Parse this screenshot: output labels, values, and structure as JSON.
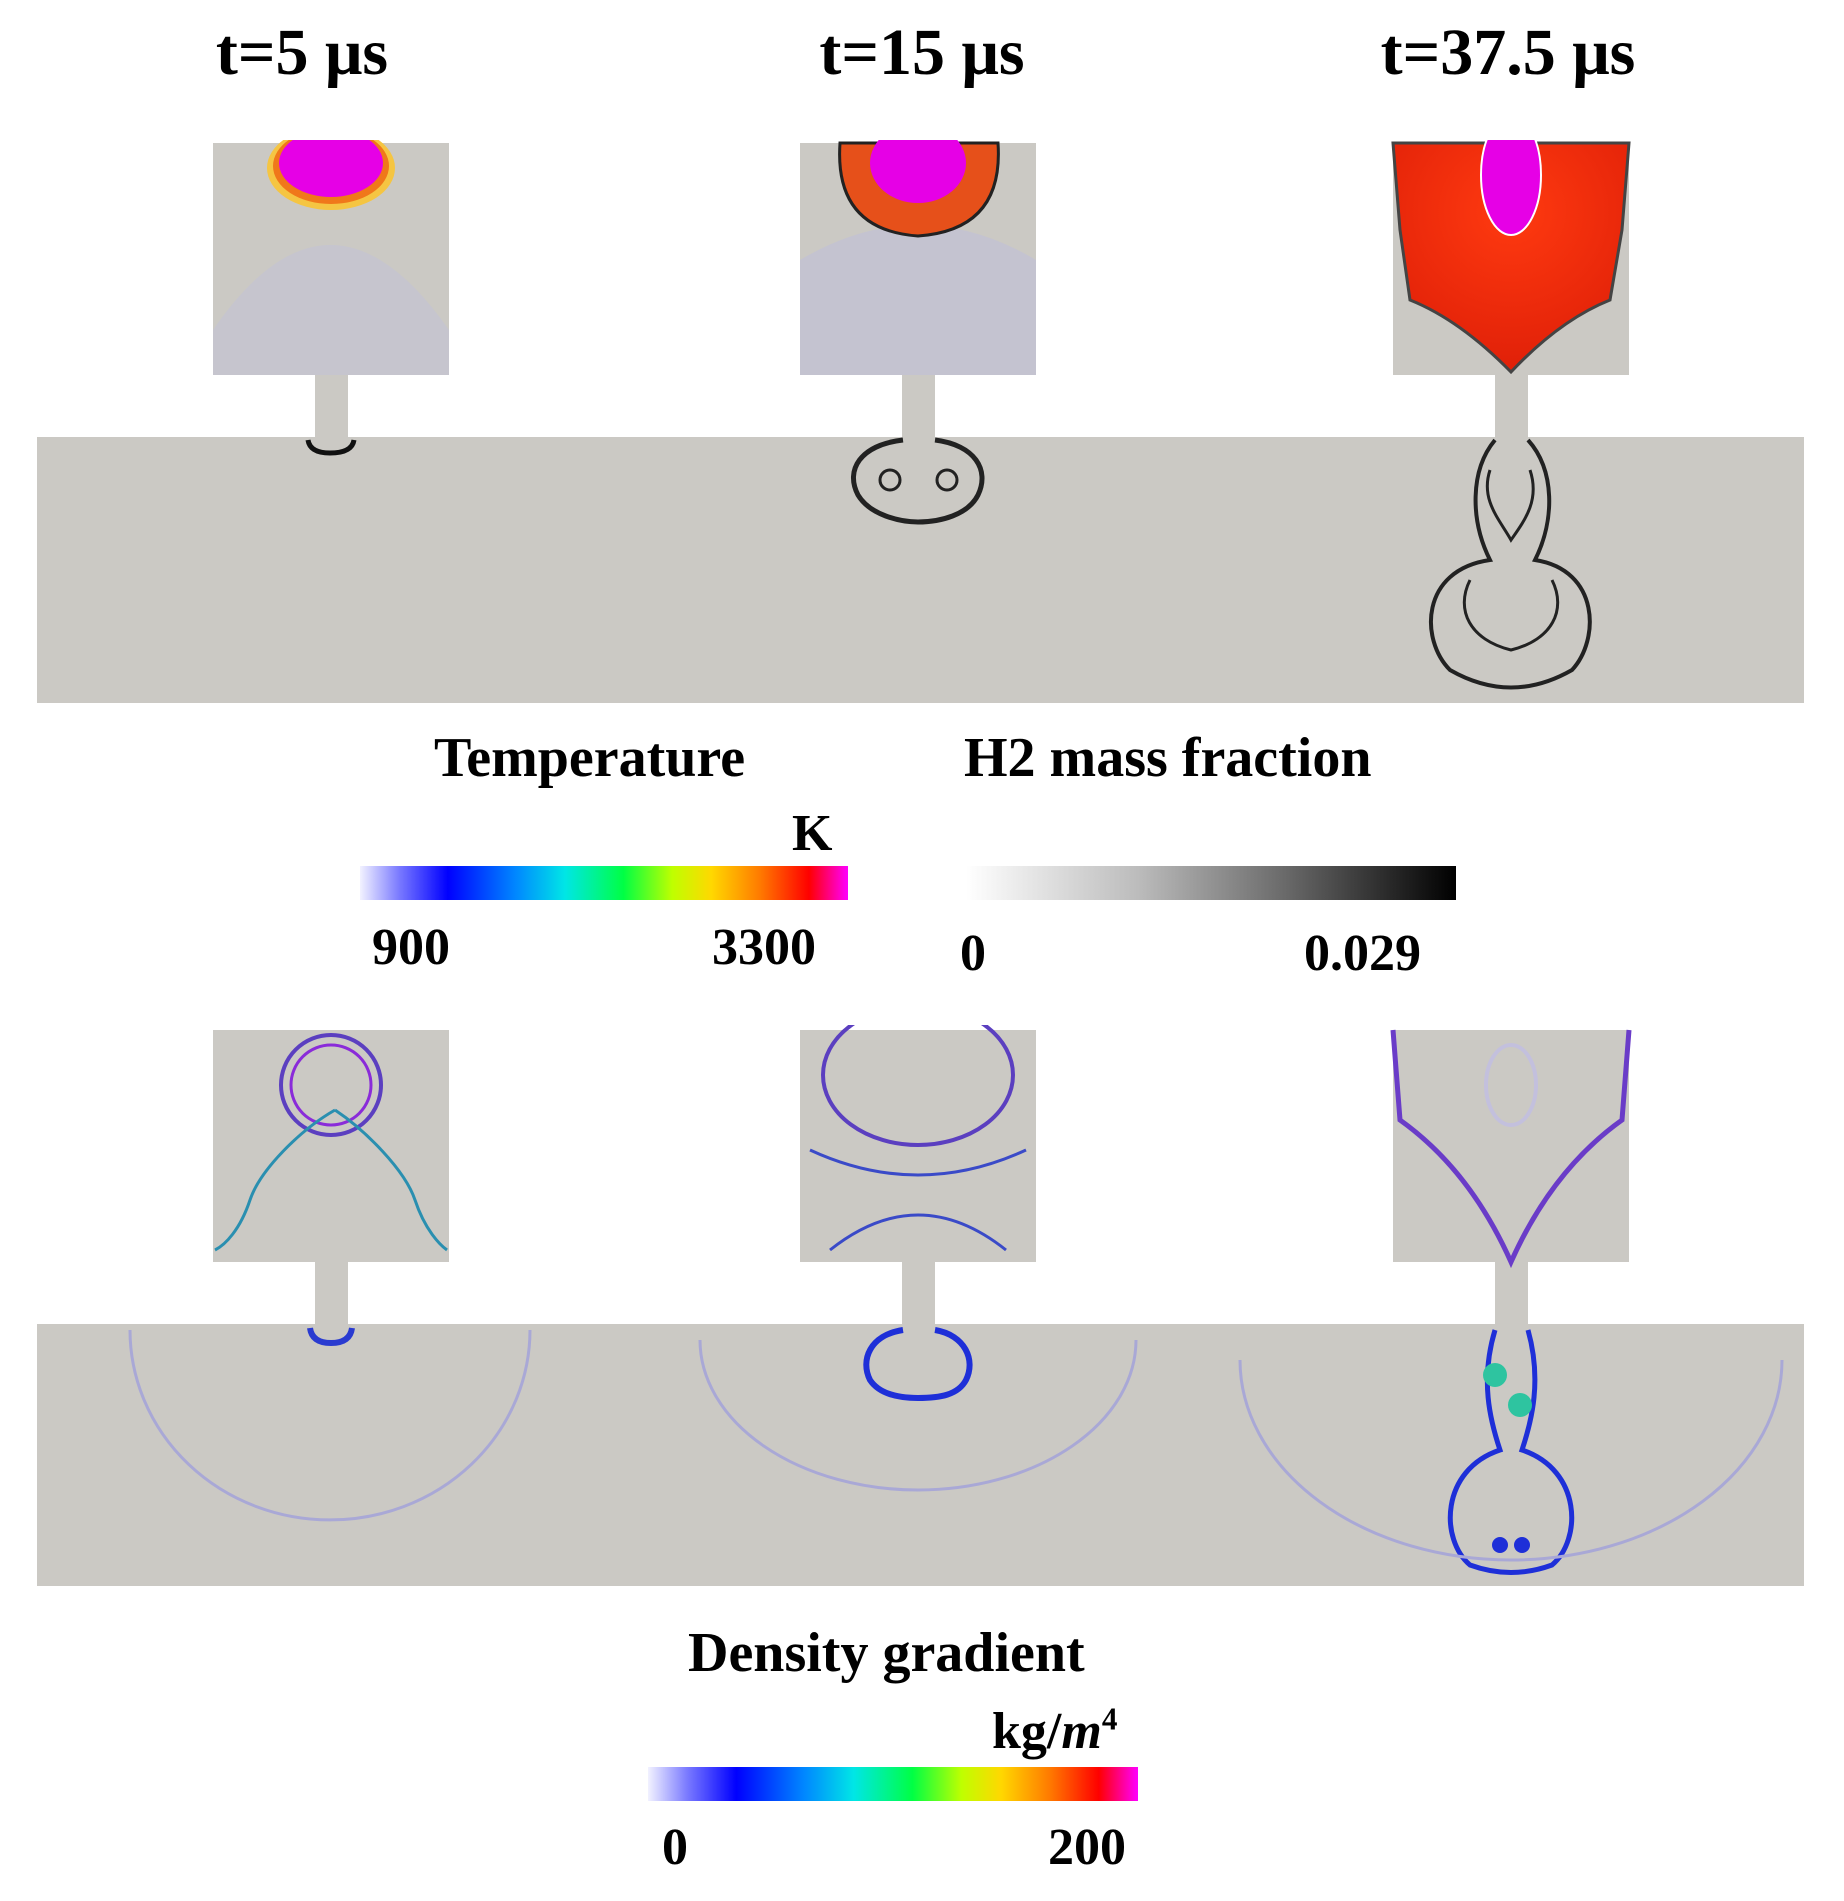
{
  "time_labels": [
    "t=5 μs",
    "t=15 μs",
    "t=37.5 μs"
  ],
  "temperature_bar": {
    "title": "Temperature",
    "unit": "K",
    "min": "900",
    "max": "3300"
  },
  "h2_bar": {
    "title": "H2 mass fraction",
    "min": "0",
    "max": "0.029"
  },
  "density_bar": {
    "title": "Density gradient",
    "unit_base": "kg/",
    "unit_var": "m",
    "unit_exp": "4",
    "min": "0",
    "max": "200"
  },
  "colors": {
    "domain_fill": "#cbc9c4",
    "hot_core": "#e600e6",
    "flame": "#e52a0a",
    "shock_line": "#2a3bd0"
  }
}
